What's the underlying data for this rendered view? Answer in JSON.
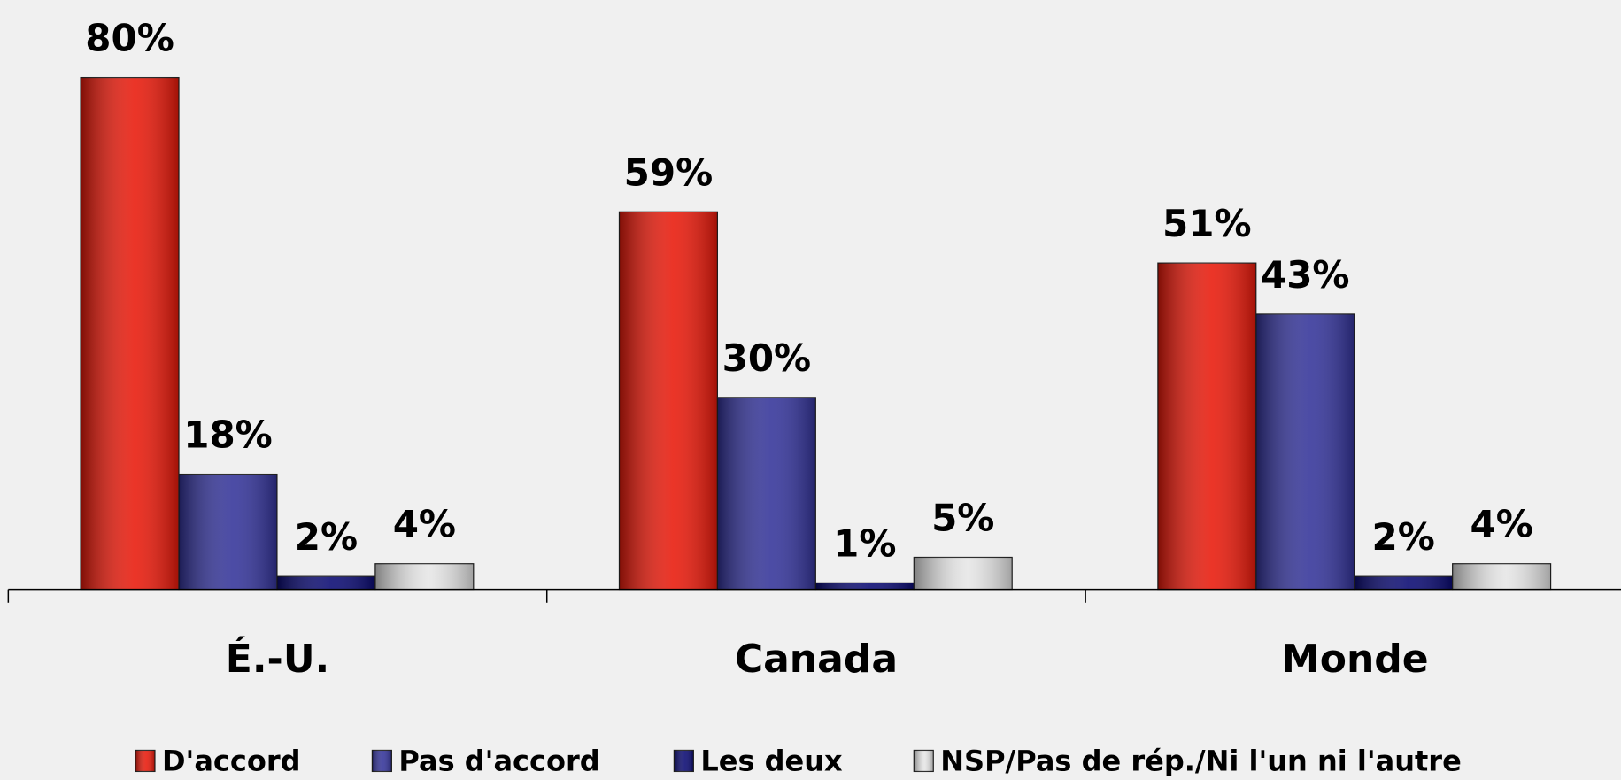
{
  "chart_data": {
    "type": "bar",
    "categories": [
      "É.-U.",
      "Canada",
      "Monde"
    ],
    "series": [
      {
        "name": "D'accord",
        "color": "#e8190a",
        "values": [
          80,
          59,
          51
        ],
        "value_labels": [
          "80%",
          "59%",
          "51%"
        ]
      },
      {
        "name": "Pas d'accord",
        "color": "#333399",
        "values": [
          18,
          30,
          43
        ],
        "value_labels": [
          "18%",
          "30%",
          "43%"
        ]
      },
      {
        "name": "Les deux",
        "color": "#0a0a72",
        "values": [
          2,
          1,
          2
        ],
        "value_labels": [
          "2%",
          "1%",
          "2%"
        ]
      },
      {
        "name": "NSP/Pas de rép./Ni l'un ni l'autre",
        "color": "#e6e6e6",
        "values": [
          4,
          5,
          4
        ],
        "value_labels": [
          "4%",
          "5%",
          "4%"
        ]
      }
    ],
    "legend": "bottom"
  }
}
